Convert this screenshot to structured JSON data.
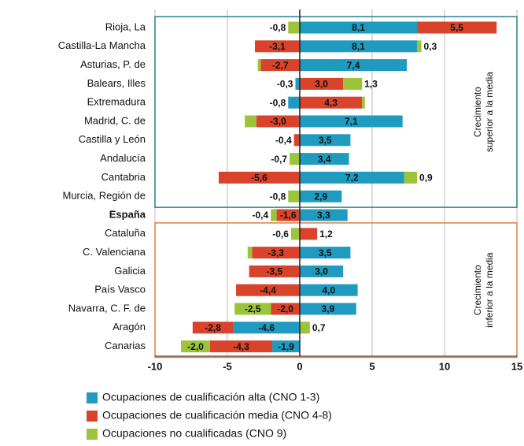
{
  "chart_data": {
    "type": "bar",
    "orientation": "horizontal",
    "stacked": true,
    "categories": [
      "Rioja, La",
      "Castilla-La Mancha",
      "Asturias, P. de",
      "Balears, Illes",
      "Extremadura",
      "Madrid, C. de",
      "Castilla y León",
      "Andalucía",
      "Cantabria",
      "Murcia, Región de",
      "España",
      "Cataluña",
      "C. Valenciana",
      "Galicia",
      "País Vasco",
      "Navarra, C. F. de",
      "Aragón",
      "Canarias"
    ],
    "bold_categories": [
      10
    ],
    "series": [
      {
        "name": "Ocupaciones de cualificación alta (CNO 1-3)",
        "color": "#1f9bc0",
        "values": [
          8.1,
          8.1,
          7.4,
          -0.3,
          -0.8,
          7.1,
          3.5,
          3.4,
          7.2,
          2.9,
          3.3,
          null,
          3.5,
          3.0,
          4.0,
          3.9,
          -4.6,
          -1.9
        ],
        "value_labels": [
          "8,1",
          "8,1",
          "7,4",
          "-0,3",
          "-0,8",
          "7,1",
          "3,5",
          "3,4",
          "7,2",
          "2,9",
          "3,3",
          null,
          "3,5",
          "3,0",
          "4,0",
          "3,9",
          "-4,6",
          "-1,9"
        ]
      },
      {
        "name": "Ocupaciones de cualificación media (CNO 4-8)",
        "color": "#d9432b",
        "values": [
          5.5,
          -3.1,
          -2.7,
          3.0,
          4.3,
          -3.0,
          -0.4,
          null,
          -5.6,
          null,
          -1.6,
          1.2,
          -3.3,
          -3.5,
          -4.4,
          -2.0,
          -2.8,
          -4.3
        ],
        "value_labels": [
          "5,5",
          "-3,1",
          "-2,7",
          "3,0",
          "4,3",
          "-3,0",
          "-0,4",
          null,
          "-5,6",
          null,
          "-1,6",
          "1,2",
          "-3,3",
          "-3,5",
          "-4,4",
          "-2,0",
          "-2,8",
          "-4,3"
        ]
      },
      {
        "name": "Ocupaciones no cualificadas (CNO 9)",
        "color": "#9cc43a",
        "values": [
          -0.8,
          0.3,
          -0.2,
          1.3,
          0.2,
          -0.8,
          null,
          -0.7,
          0.9,
          -0.8,
          -0.4,
          -0.6,
          -0.3,
          null,
          null,
          -2.5,
          0.7,
          -2.0
        ],
        "value_labels": [
          "-0,8",
          "0,3",
          null,
          "1,3",
          null,
          null,
          null,
          "-0,7",
          "0,9",
          "-0,8",
          "-0,4",
          "-0,6",
          null,
          null,
          null,
          "-2,5",
          "0,7",
          "-2,0"
        ]
      }
    ],
    "xlim": [
      -10,
      15
    ],
    "xticks": [
      -10,
      -5,
      0,
      5,
      10,
      15
    ],
    "grid": true,
    "groups": [
      {
        "lines": [
          "Crecimiento",
          "superior a la media"
        ],
        "color": "#2a7f8a",
        "from": 0,
        "to": 9
      },
      {
        "lines": [
          "Crecimiento",
          "inferior a la media"
        ],
        "color": "#e07b45",
        "from": 11,
        "to": 17
      }
    ]
  }
}
